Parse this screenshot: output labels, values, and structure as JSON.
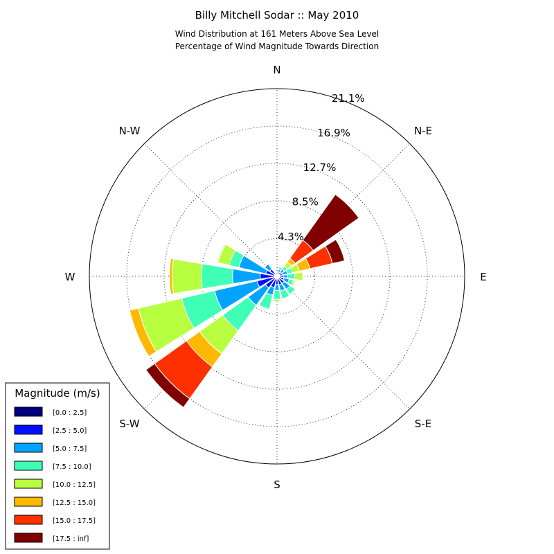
{
  "chart_data": {
    "type": "windrose",
    "title": "Billy Mitchell Sodar :: May 2010",
    "subtitle_lines": [
      "Wind Distribution at 161 Meters Above Sea Level",
      "Percentage of Wind Magnitude Towards Direction"
    ],
    "directions": [
      "N",
      "N-E",
      "E",
      "S-E",
      "S",
      "S-W",
      "W",
      "N-W"
    ],
    "radial_ticks": [
      "4.3%",
      "8.5%",
      "12.7%",
      "16.9%",
      "21.1%"
    ],
    "radial_values": [
      4.25,
      8.5,
      12.7,
      16.9,
      21.1
    ],
    "radial_max": 21.1,
    "grid": true,
    "legend": {
      "title": "Magnitude (m/s)",
      "placement": "lower-left",
      "entries": [
        {
          "label": "[0.0 : 2.5]",
          "color": "#000080"
        },
        {
          "label": "[2.5 : 5.0]",
          "color": "#0010ff"
        },
        {
          "label": "[5.0 : 7.5]",
          "color": "#00a4ff"
        },
        {
          "label": "[7.5 : 10.0]",
          "color": "#40ffb7"
        },
        {
          "label": "[10.0 : 12.5]",
          "color": "#b8ff40"
        },
        {
          "label": "[12.5 : 15.0]",
          "color": "#ffb800"
        },
        {
          "label": "[15.0 : 17.5]",
          "color": "#ff3000"
        },
        {
          "label": "[17.5 : inf]",
          "color": "#800000"
        }
      ]
    },
    "series": [
      {
        "bearing": 0,
        "cumulative": [
          0.1,
          0.2
        ]
      },
      {
        "bearing": 22.5,
        "cumulative": [
          0.2,
          0.5,
          0.8,
          1.1
        ]
      },
      {
        "bearing": 45,
        "cumulative": [
          0.3,
          0.6,
          1.0,
          1.4,
          2.0,
          2.5,
          5.0,
          11.3
        ]
      },
      {
        "bearing": 67.5,
        "cumulative": [
          0.3,
          0.6,
          1.2,
          1.8,
          2.6,
          3.8,
          6.4,
          7.8
        ]
      },
      {
        "bearing": 90,
        "cumulative": [
          0.3,
          0.7,
          1.2,
          2.0,
          2.9
        ]
      },
      {
        "bearing": 112.5,
        "cumulative": [
          0.3,
          0.8,
          1.4,
          1.9,
          2.1
        ]
      },
      {
        "bearing": 135,
        "cumulative": [
          0.3,
          1.0,
          1.8,
          2.5
        ]
      },
      {
        "bearing": 157.5,
        "cumulative": [
          0.3,
          1.0,
          1.7,
          2.6
        ]
      },
      {
        "bearing": 180,
        "cumulative": [
          0.3,
          0.9,
          1.6,
          2.6,
          2.8
        ]
      },
      {
        "bearing": 202.5,
        "cumulative": [
          0.3,
          1.3,
          2.2,
          3.8,
          3.9
        ]
      },
      {
        "bearing": 225,
        "cumulative": [
          0.3,
          1.6,
          4.0,
          7.5,
          10.7,
          12.5,
          16.9,
          18.1
        ]
      },
      {
        "bearing": 247.5,
        "cumulative": [
          0.3,
          2.3,
          7.2,
          11.0,
          16.0,
          17.0
        ]
      },
      {
        "bearing": 270,
        "cumulative": [
          0.3,
          1.9,
          5.0,
          8.5,
          11.8,
          12.1
        ]
      },
      {
        "bearing": 292.5,
        "cumulative": [
          0.3,
          1.3,
          4.4,
          5.5,
          6.8,
          6.9
        ]
      },
      {
        "bearing": 315,
        "cumulative": [
          0.3,
          1.0,
          1.7
        ]
      },
      {
        "bearing": 337.5,
        "cumulative": [
          0.1,
          0.2
        ]
      }
    ]
  }
}
